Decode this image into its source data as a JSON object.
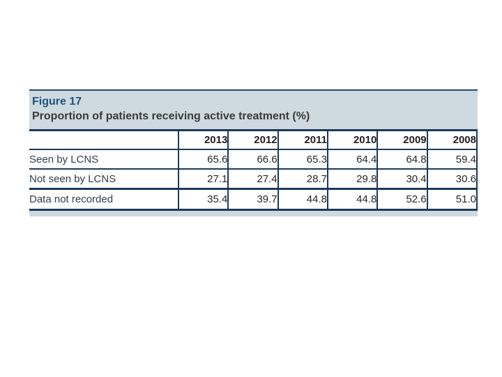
{
  "figure": {
    "label": "Figure 17",
    "title": "Proportion of patients receiving active treatment (%)"
  },
  "table": {
    "columns": [
      "2013",
      "2012",
      "2011",
      "2010",
      "2009",
      "2008"
    ],
    "rows": [
      {
        "label": "Seen by LCNS",
        "values": [
          "65.6",
          "66.6",
          "65.3",
          "64.4",
          "64.8",
          "59.4"
        ]
      },
      {
        "label": "Not seen by LCNS",
        "values": [
          "27.1",
          "27.4",
          "28.7",
          "29.8",
          "30.4",
          "30.6"
        ]
      },
      {
        "label": "Data not recorded",
        "values": [
          "35.4",
          "39.7",
          "44.8",
          "44.8",
          "52.6",
          "51.0"
        ]
      }
    ]
  },
  "chart_data": {
    "type": "table",
    "title": "Proportion of patients receiving active treatment (%)",
    "categories": [
      "2013",
      "2012",
      "2011",
      "2010",
      "2009",
      "2008"
    ],
    "series": [
      {
        "name": "Seen by LCNS",
        "values": [
          65.6,
          66.6,
          65.3,
          64.4,
          64.8,
          59.4
        ]
      },
      {
        "name": "Not seen by LCNS",
        "values": [
          27.1,
          27.4,
          28.7,
          29.8,
          30.4,
          30.6
        ]
      },
      {
        "name": "Data not recorded",
        "values": [
          35.4,
          39.7,
          44.8,
          44.8,
          52.6,
          51.0
        ]
      }
    ]
  },
  "colors": {
    "band_background": "#cfd9e0",
    "rule_dark_navy": "#1b3a57",
    "figure_label_blue": "#1d537f",
    "title_text": "#3a3a3a",
    "footer_strip": "#cfd9e0",
    "page_background": "#ffffff"
  }
}
